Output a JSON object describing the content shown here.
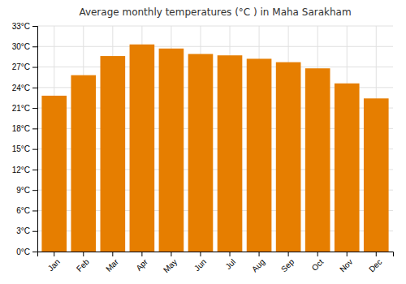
{
  "chart_data": {
    "type": "bar",
    "title": "Average monthly temperatures (°C ) in Maha Sarakham",
    "categories": [
      "Jan",
      "Feb",
      "Mar",
      "Apr",
      "May",
      "Jun",
      "Jul",
      "Aug",
      "Sep",
      "Oct",
      "Nov",
      "Dec"
    ],
    "values": [
      22.8,
      25.8,
      28.6,
      30.3,
      29.7,
      28.9,
      28.7,
      28.2,
      27.7,
      26.8,
      24.6,
      22.4
    ],
    "color": "#E67E00",
    "ylim": [
      0,
      33
    ],
    "yticks": [
      {
        "value": 0,
        "label": "0°C"
      },
      {
        "value": 3,
        "label": "3°C"
      },
      {
        "value": 6,
        "label": "6°C"
      },
      {
        "value": 9,
        "label": "9°C"
      },
      {
        "value": 12,
        "label": "12°C"
      },
      {
        "value": 15,
        "label": "15°C"
      },
      {
        "value": 18,
        "label": "18°C"
      },
      {
        "value": 21,
        "label": "21°C"
      },
      {
        "value": 24,
        "label": "24°C"
      },
      {
        "value": 27,
        "label": "27°C"
      },
      {
        "value": 30,
        "label": "30°C"
      },
      {
        "value": 33,
        "label": "33°C"
      }
    ],
    "grid": true
  }
}
